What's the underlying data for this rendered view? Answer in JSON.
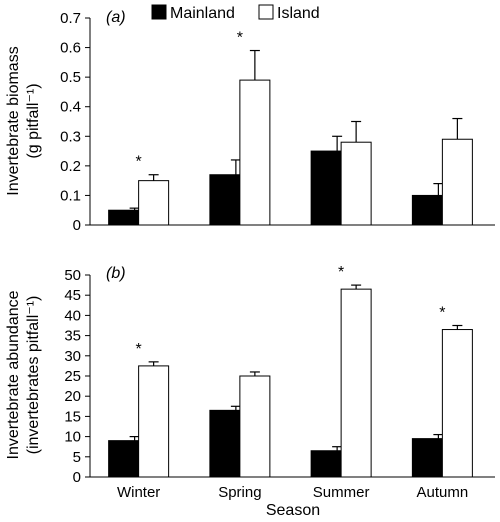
{
  "legend": {
    "position": "top",
    "items": [
      {
        "label": "Mainland",
        "color": "#000000"
      },
      {
        "label": "Island",
        "color": "#ffffff"
      }
    ]
  },
  "xlabel": "Season",
  "chart_data": [
    {
      "type": "bar",
      "panel_label": "(a)",
      "categories": [
        "Winter",
        "Spring",
        "Summer",
        "Autumn"
      ],
      "series": [
        {
          "name": "Mainland",
          "values": [
            0.05,
            0.17,
            0.25,
            0.1
          ],
          "errors": [
            0.007,
            0.05,
            0.05,
            0.04
          ]
        },
        {
          "name": "Island",
          "values": [
            0.15,
            0.49,
            0.28,
            0.29
          ],
          "errors": [
            0.02,
            0.1,
            0.07,
            0.07
          ]
        }
      ],
      "significance": [
        true,
        true,
        false,
        false
      ],
      "significance_marker": "*",
      "ylabel_line1": "Invertebrate biomass",
      "ylabel_line2": "(g pitfall⁻¹)",
      "ylim": [
        0,
        0.7
      ],
      "yticks": [
        0,
        0.1,
        0.2,
        0.3,
        0.4,
        0.5,
        0.6,
        0.7
      ],
      "ytick_labels": [
        "0",
        "0.1",
        "0.2",
        "0.3",
        "0.4",
        "0.5",
        "0.6",
        "0.7"
      ],
      "grid": false
    },
    {
      "type": "bar",
      "panel_label": "(b)",
      "categories": [
        "Winter",
        "Spring",
        "Summer",
        "Autumn"
      ],
      "series": [
        {
          "name": "Mainland",
          "values": [
            9,
            16.5,
            6.5,
            9.5
          ],
          "errors": [
            1.0,
            1.0,
            1.0,
            1.0
          ]
        },
        {
          "name": "Island",
          "values": [
            27.5,
            25,
            46.5,
            36.5
          ],
          "errors": [
            1.0,
            1.0,
            1.0,
            1.0
          ]
        }
      ],
      "significance": [
        true,
        false,
        true,
        true
      ],
      "significance_marker": "*",
      "ylabel_line1": "Invertebrate abundance",
      "ylabel_line2": "(invertebrates pitfall⁻¹)",
      "ylim": [
        0,
        50
      ],
      "yticks": [
        0,
        5,
        10,
        15,
        20,
        25,
        30,
        35,
        40,
        45,
        50
      ],
      "ytick_labels": [
        "0",
        "5",
        "10",
        "15",
        "20",
        "25",
        "30",
        "35",
        "40",
        "45",
        "50"
      ],
      "grid": false
    }
  ]
}
